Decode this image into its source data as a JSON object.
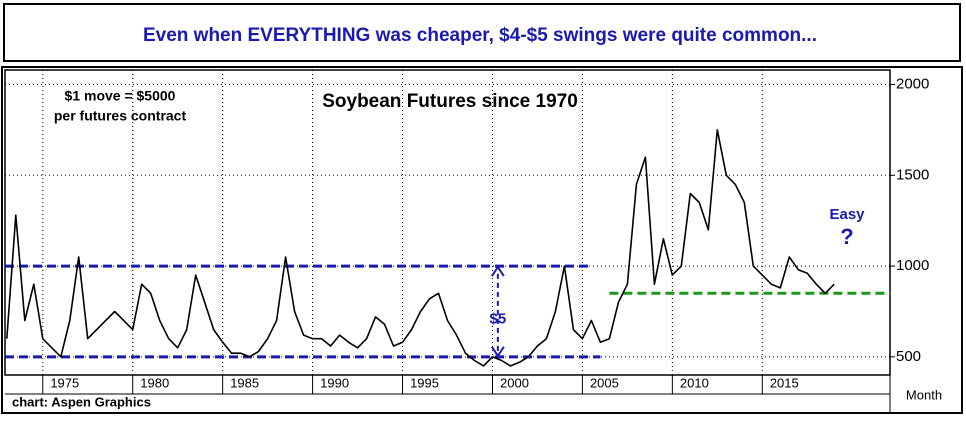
{
  "chart_data": {
    "type": "line",
    "title": "Even when EVERYTHING was cheaper, $4-$5 swings were quite common...",
    "subtitle": "Soybean Futures since 1970",
    "annotations": [
      "$1 move = $5000",
      "per futures contract",
      "Easy",
      "?"
    ],
    "source": "chart: Aspen Graphics",
    "x_label": "Month",
    "color": "#000000",
    "x": [
      1973,
      1973.5,
      1974,
      1974.5,
      1975,
      1975.5,
      1976,
      1976.5,
      1977,
      1977.5,
      1978,
      1978.5,
      1979,
      1979.5,
      1980,
      1980.5,
      1981,
      1981.5,
      1982,
      1982.5,
      1983,
      1983.5,
      1984,
      1984.5,
      1985,
      1985.5,
      1986,
      1986.5,
      1987,
      1987.5,
      1988,
      1988.5,
      1989,
      1989.5,
      1990,
      1990.5,
      1991,
      1991.5,
      1992,
      1992.5,
      1993,
      1993.5,
      1994,
      1994.5,
      1995,
      1995.5,
      1996,
      1996.5,
      1997,
      1997.5,
      1998,
      1998.5,
      1999,
      1999.5,
      2000,
      2000.5,
      2001,
      2001.5,
      2002,
      2002.5,
      2003,
      2003.5,
      2004,
      2004.5,
      2005,
      2005.5,
      2006,
      2006.5,
      2007,
      2007.5,
      2008,
      2008.5,
      2009,
      2009.5,
      2010,
      2010.5,
      2011,
      2011.5,
      2012,
      2012.5,
      2013,
      2013.5,
      2014,
      2014.5,
      2015,
      2015.5,
      2016,
      2016.5,
      2017,
      2017.5,
      2018,
      2018.5,
      2019
    ],
    "values": [
      600,
      1280,
      700,
      900,
      600,
      550,
      500,
      700,
      1050,
      600,
      650,
      700,
      750,
      700,
      650,
      900,
      850,
      700,
      600,
      550,
      650,
      950,
      800,
      650,
      580,
      520,
      520,
      500,
      530,
      600,
      700,
      1050,
      750,
      620,
      600,
      600,
      560,
      620,
      580,
      550,
      600,
      720,
      680,
      560,
      580,
      650,
      750,
      820,
      850,
      700,
      620,
      520,
      480,
      450,
      500,
      480,
      450,
      470,
      500,
      560,
      600,
      750,
      1000,
      650,
      600,
      700,
      580,
      600,
      800,
      900,
      1450,
      1600,
      900,
      1150,
      950,
      1000,
      1400,
      1350,
      1200,
      1750,
      1500,
      1450,
      1350,
      1000,
      950,
      900,
      880,
      1050,
      980,
      960,
      900,
      850,
      900
    ],
    "reference_lines": [
      {
        "value": 1000,
        "x": [
          1972.9,
          2005.5
        ],
        "color": "#1a1ab0"
      },
      {
        "value": 500,
        "x": [
          1972.9,
          2006
        ],
        "color": "#1a1ab0"
      },
      {
        "value": 850,
        "x": [
          2006.5,
          2022.1
        ],
        "color": "#1a9a1a"
      }
    ],
    "span": {
      "from": 500,
      "to": 1000,
      "x": 2000.3,
      "label": "$5",
      "color": "#1a1ab0"
    },
    "xlim": [
      1972.9,
      2022.1
    ],
    "xticks": [
      1975,
      1980,
      1985,
      1990,
      1995,
      2000,
      2005,
      2010,
      2015
    ],
    "ylim": [
      400,
      2080
    ],
    "yticks": [
      500,
      1000,
      1500,
      2000
    ],
    "grid": true
  }
}
